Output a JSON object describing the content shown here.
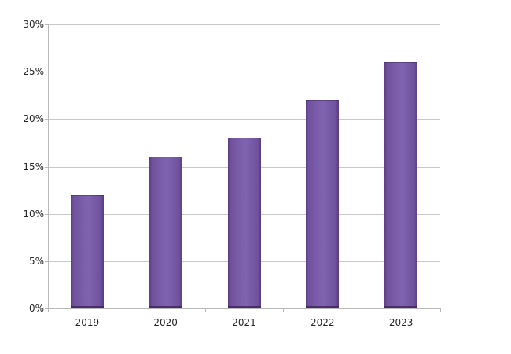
{
  "chart_data": {
    "type": "bar",
    "title": "",
    "xlabel": "",
    "ylabel": "",
    "categories": [
      "2019",
      "2020",
      "2021",
      "2022",
      "2023"
    ],
    "values": [
      12,
      16,
      18,
      22,
      26
    ],
    "ylim": [
      0,
      30
    ],
    "ytick_step": 5,
    "ytick_suffix": "%",
    "grid": true,
    "legend_position": "none",
    "colors": {
      "bar_fill": "#7659a6",
      "bar_fill_light": "#7f63b0",
      "bar_edge": "#5b3e85",
      "bar_bottom_edge": "#4c2f66",
      "gridline": "#c9c9c9",
      "axis": "#b9b9b9",
      "label": "#262626",
      "background": "#ffffff"
    }
  }
}
